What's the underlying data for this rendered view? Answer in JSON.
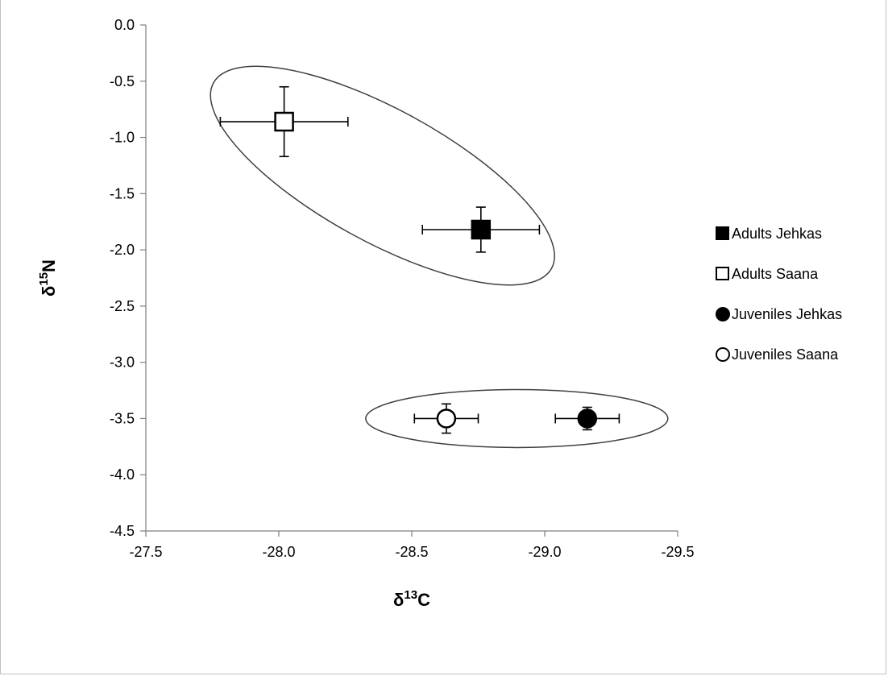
{
  "chart_data": {
    "type": "scatter",
    "title": "",
    "xlabel": {
      "prefix": "δ",
      "sup": "13",
      "suffix": "C"
    },
    "ylabel": {
      "prefix": "δ",
      "sup": "15",
      "suffix": "N"
    },
    "xlim": [
      -27.5,
      -29.5
    ],
    "ylim": [
      -4.5,
      0.0
    ],
    "x_reversed": true,
    "x_ticks": [
      -27.5,
      -28.0,
      -28.5,
      -29.0,
      -29.5
    ],
    "x_tick_labels": [
      "-27.5",
      "-28.0",
      "-28.5",
      "-29.0",
      "-29.5"
    ],
    "y_ticks": [
      0.0,
      -0.5,
      -1.0,
      -1.5,
      -2.0,
      -2.5,
      -3.0,
      -3.5,
      -4.0,
      -4.5
    ],
    "y_tick_labels": [
      "0.0",
      "-0.5",
      "-1.0",
      "-1.5",
      "-2.0",
      "-2.5",
      "-3.0",
      "-3.5",
      "-4.0",
      "-4.5"
    ],
    "grid": false,
    "legend_position": "right",
    "series": [
      {
        "name": "Adults Jehkas",
        "marker": "square",
        "fill": "#000000",
        "x": -28.76,
        "y": -1.82,
        "x_err": 0.22,
        "y_err": 0.2
      },
      {
        "name": "Adults Saana",
        "marker": "square",
        "fill": "#ffffff",
        "x": -28.02,
        "y": -0.86,
        "x_err": 0.24,
        "y_err": 0.31
      },
      {
        "name": "Juveniles Jehkas",
        "marker": "circle",
        "fill": "#000000",
        "x": -29.16,
        "y": -3.5,
        "x_err": 0.12,
        "y_err": 0.1
      },
      {
        "name": "Juveniles Saana",
        "marker": "circle",
        "fill": "#ffffff",
        "x": -28.63,
        "y": -3.5,
        "x_err": 0.12,
        "y_err": 0.13
      }
    ],
    "groupings": [
      {
        "kind": "ellipse",
        "members": [
          "Adults Saana",
          "Adults Jehkas"
        ]
      },
      {
        "kind": "ellipse",
        "members": [
          "Juveniles Saana",
          "Juveniles Jehkas"
        ]
      }
    ]
  }
}
